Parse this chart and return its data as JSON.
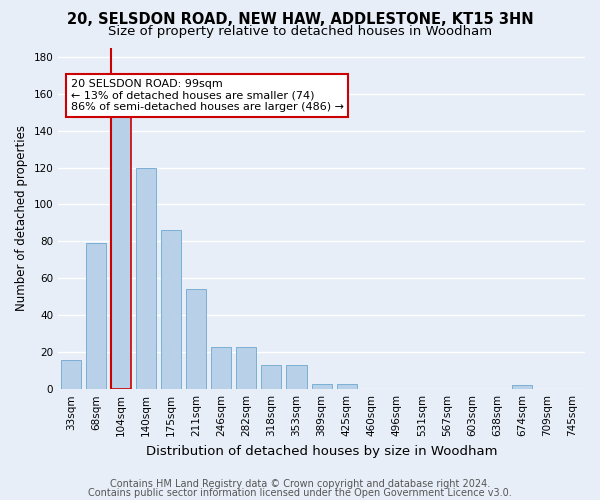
{
  "title1": "20, SELSDON ROAD, NEW HAW, ADDLESTONE, KT15 3HN",
  "title2": "Size of property relative to detached houses in Woodham",
  "xlabel": "Distribution of detached houses by size in Woodham",
  "ylabel": "Number of detached properties",
  "bar_values": [
    16,
    79,
    150,
    120,
    86,
    54,
    23,
    23,
    13,
    13,
    3,
    3,
    0,
    0,
    0,
    0,
    0,
    0,
    2,
    0,
    0
  ],
  "bar_labels": [
    "33sqm",
    "68sqm",
    "104sqm",
    "140sqm",
    "175sqm",
    "211sqm",
    "246sqm",
    "282sqm",
    "318sqm",
    "353sqm",
    "389sqm",
    "425sqm",
    "460sqm",
    "496sqm",
    "531sqm",
    "567sqm",
    "603sqm",
    "638sqm",
    "674sqm",
    "709sqm",
    "745sqm"
  ],
  "bar_color": "#b8d0e8",
  "bar_edge_color": "#7aafd4",
  "highlight_bar_index": 2,
  "highlight_color": "#b8d0e8",
  "highlight_edge_color": "#cc0000",
  "vline_color": "#cc0000",
  "annotation_title": "20 SELSDON ROAD: 99sqm",
  "annotation_line1": "← 13% of detached houses are smaller (74)",
  "annotation_line2": "86% of semi-detached houses are larger (486) →",
  "annotation_box_color": "white",
  "annotation_box_edge_color": "#cc0000",
  "footer1": "Contains HM Land Registry data © Crown copyright and database right 2024.",
  "footer2": "Contains public sector information licensed under the Open Government Licence v3.0.",
  "ylim": [
    0,
    185
  ],
  "yticks": [
    0,
    20,
    40,
    60,
    80,
    100,
    120,
    140,
    160,
    180
  ],
  "bg_color": "#e8eef8",
  "grid_color": "white",
  "title1_fontsize": 10.5,
  "title2_fontsize": 9.5,
  "xlabel_fontsize": 9.5,
  "ylabel_fontsize": 8.5,
  "tick_fontsize": 7.5,
  "footer_fontsize": 7.0,
  "ann_fontsize": 8.0
}
